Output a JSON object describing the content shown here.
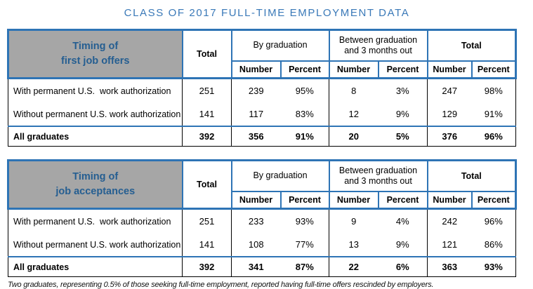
{
  "title": "CLASS OF 2017 FULL-TIME EMPLOYMENT DATA",
  "header_columns": {
    "total_label": "Total",
    "group_by_graduation": "By graduation",
    "group_between": "Between graduation and 3 months out",
    "group_total": "Total",
    "number_label": "Number",
    "percent_label": "Percent"
  },
  "tables": [
    {
      "title_line1": "Timing of",
      "title_line2": "first job offers",
      "rows": [
        {
          "label": "With permanent U.S.  work authorization",
          "values": [
            "251",
            "239",
            "95%",
            "8",
            "3%",
            "247",
            "98%"
          ],
          "bold": false
        },
        {
          "label": "Without permanent U.S. work authorization",
          "values": [
            "141",
            "117",
            "83%",
            "12",
            "9%",
            "129",
            "91%"
          ],
          "bold": false
        },
        {
          "label": "All graduates",
          "values": [
            "392",
            "356",
            "91%",
            "20",
            "5%",
            "376",
            "96%"
          ],
          "bold": true
        }
      ]
    },
    {
      "title_line1": "Timing of",
      "title_line2": "job acceptances",
      "rows": [
        {
          "label": "With permanent U.S.  work authorization",
          "values": [
            "251",
            "233",
            "93%",
            "9",
            "4%",
            "242",
            "96%"
          ],
          "bold": false
        },
        {
          "label": "Without permanent U.S. work authorization",
          "values": [
            "141",
            "108",
            "77%",
            "13",
            "9%",
            "121",
            "86%"
          ],
          "bold": false
        },
        {
          "label": "All graduates",
          "values": [
            "392",
            "341",
            "87%",
            "22",
            "6%",
            "363",
            "93%"
          ],
          "bold": true
        }
      ]
    }
  ],
  "footnote": "Two graduates, representing 0.5% of those seeking full-time employment, reported having full-time offers rescinded by employers.",
  "colors": {
    "title_blue": "#3A79B8",
    "border_blue": "#2E74B5",
    "corner_text_blue": "#255E91",
    "corner_bg_gray": "#A6A6A6",
    "body_border_black": "#000000"
  }
}
